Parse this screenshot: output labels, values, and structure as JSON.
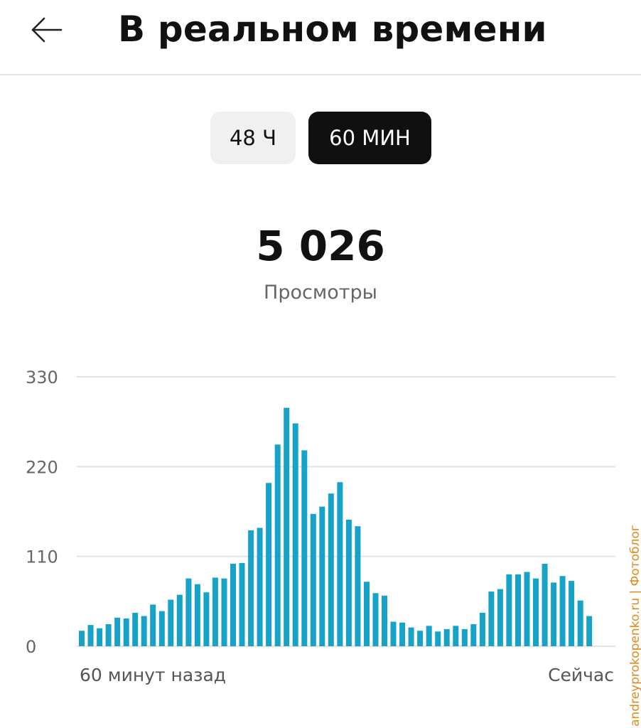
{
  "header": {
    "title": "В реальном времени",
    "back_icon": "arrow-left-icon"
  },
  "toggle": {
    "options": [
      "48 Ч",
      "60 МИН"
    ],
    "selected": "60 МИН"
  },
  "summary": {
    "views_value": "5 026",
    "views_label": "Просмотры"
  },
  "chart_data": {
    "type": "bar",
    "ylim": [
      0,
      330
    ],
    "yticks": [
      "0",
      "110",
      "220",
      "330"
    ],
    "grid": true,
    "x_start_label": "60 минут назад",
    "x_end_label": "Сейчас",
    "bar_color": "#17a2c8",
    "values": [
      19,
      26,
      22,
      27,
      35,
      34,
      41,
      37,
      51,
      43,
      57,
      63,
      83,
      76,
      66,
      84,
      83,
      101,
      102,
      142,
      145,
      200,
      247,
      292,
      273,
      240,
      162,
      171,
      187,
      201,
      155,
      147,
      79,
      65,
      62,
      30,
      29,
      23,
      19,
      25,
      18,
      21,
      25,
      21,
      27,
      41,
      67,
      70,
      88,
      88,
      91,
      83,
      101,
      78,
      86,
      80,
      56,
      37
    ]
  },
  "watermark": "andreyprokopenko.ru | Фотоблог"
}
